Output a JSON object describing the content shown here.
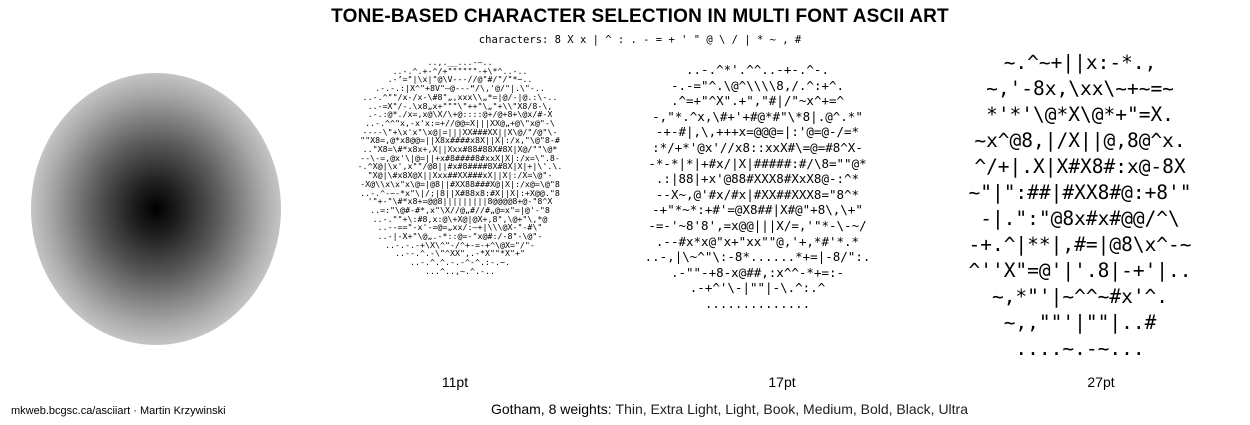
{
  "title": "TONE-BASED CHARACTER SELECTION IN MULTI FONT ASCII ART",
  "characters_line": "characters: 8 X x | ^ : . - = + ' \" @ \\ / | * ~ , #",
  "panels": [
    {
      "label": "11pt",
      "art": [
        "..,.__...-–..",
        "..-.^.+-^/+\"\"\"\"\"\"-+\\*^..-..",
        ".-’=\"|\\x|\"@\\V---//@\"#/\"/\"*~..",
        ".-.-.:|X^\"+8V\"—@---“/\\,'@/\"|.\\\"-..",
        "..-.^\"\"/x-/x-\\#8\"„,xxx\\\\„*=|@/-|@.:\\-..",
        "..-=X\"/-.\\x8„x+\"\"\"\\\"++\"\\„\"+\\\\\"X8/8-\\,",
        ".-.:@*./x=,x@\\X/\\+@::::@+/@+8+\\@x/#-X",
        "..-.^^\"x,-x'x:=+//@@=X|||XX@„+@\\\"x@\"-\\",
        "----\\\"+\\x'x\"\\x@|=|||XX###XX||X\\@/\"/@\"\\-",
        "\"\"X8=,@*x8@@=||X8x####x8X||X|:/x,\"\\@\"8-#",
        "..\"X8=\\#*x8x+,X||Xxx#88#88X#8X|X@/\"\"\\@*",
        "--\\-=,@x'\\|@=||+x#8####8#xxX|X|:/x=\\\".8-",
        "-.^X@|\\x',x\"\"/@8||#x#8####8X#8X|X|+|\\'.\\.",
        "\"X@|\\#x8X@X||Xxx##XX###xX||X|:/X=\\@\"-",
        "-X@\\\\x\\x\"x\\@=|@8||#XX88###X@|X|:/x@=\\@\"8",
        "..-.^-~-*x\"\\|/;|8||X#88x8:#X||X|:+X@@.\"8",
        "'\"+-\"\\#*x8+=@@8|||||||||8@@@@8+@-\"8^X",
        "..=:\"\\@#-#*,x\"\\X//@„#//#„@=x\"=|@'-\"8",
        "..-.\"\"+\\:#8,x:@\\+X@|@X+,8\",\\@+\"\\,*@",
        "..--==\"-x'-=@=„xx/:—+|\\\\\\@X-\"-#\\\"",
        "..-|-X+\"\\@„.-*::@=-\"x@#:/-8\"-\\@\"-",
        "..-.-.-+\\X\\^\"-/^+-=-+^\\@X=\"/\"-",
        "..--.^.-\\\"^XX\",.-*X\"\"*X\"+\"",
        "..-.^.^.-.-^-^.:-.~.",
        "...^..,~.^.-.."
      ]
    },
    {
      "label": "17pt",
      "art": [
        "..-.^*'.^^..-+-.^-.",
        "-.-=\"^.\\@^\\\\\\\\8,/.^:+^.",
        ".^=+\"^X\".+\",\"#|/\"~x^+=^",
        "-,\"*.^x,\\#+'+#@*#\"\\*8|.@^.*\"",
        "-+-#|,\\,+++x=@@@=|:'@=@-/=*",
        ":*/+*'@x'//x8::xxX#\\=@=#8^X-",
        "-*-*|*|+#x/|X|#####:#/\\8=\"\"@*",
        ".:|88|+x'@88#XXX8#XxX8@-:^*",
        "--X~,@'#x/#x|#XX##XXX8=\"8^*",
        "-+\"*~*:+#'=@X8##|X#@\"+8\\,\\+\"",
        "-=-'~8'8',=x@@|||X/=,'\"*-\\-~/",
        ".--#x*x@\"x+\"xx\"\"@,'+,*#'*.*",
        "..-,|\\~^\"\\:-8*......*+=|-8/\":.",
        ".-\"\"-+8-x@##,:x^^-*+=:-",
        ".-+^'\\-|\"\"|-\\.^:.^",
        ".............."
      ]
    },
    {
      "label": "27pt",
      "art": [
        "~.^~+||x:-*.,",
        "~,'-8x,\\xx\\~+~=~",
        "*'*'\\@*X\\@*+\"=X.",
        "~x^@8,|/X||@,8@^x.",
        "^/+|.X|X#X8#:x@-8X",
        "~\"|\":##|#XX8#@:+8'\"",
        "-|.\":\"@8x#x#@@/^\\",
        "-+.^|**|,#=|@8\\x^-~",
        "^''X\"=@'|'.8|-+'|..",
        "~,*\"'|~^^~#x'^.",
        "~,,\"\"'|\"\"|..#",
        "....~.-~..."
      ]
    }
  ],
  "credit": "mkweb.bcgsc.ca/asciiart · Martin Krzywinski",
  "weights": {
    "prefix": "Gotham, 8 weights:",
    "list": "Thin, Extra Light, Light, Book, Medium, Bold, Black, Ultra"
  }
}
